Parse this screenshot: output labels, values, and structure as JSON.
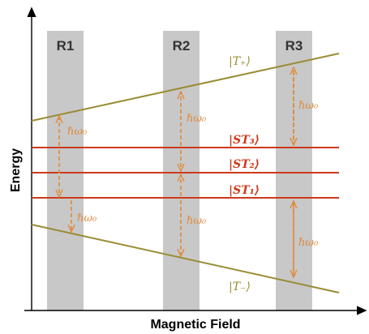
{
  "axes": {
    "xlabel": "Magnetic Field",
    "ylabel": "Energy"
  },
  "regions": [
    {
      "label": "R1"
    },
    {
      "label": "R2"
    },
    {
      "label": "R3"
    }
  ],
  "levels": {
    "t_plus": "|T₊⟩",
    "st3": "|ST₃⟩",
    "st2": "|ST₂⟩",
    "st1": "|ST₁⟩",
    "t_minus": "|T₋⟩"
  },
  "transition_label": "ℏω₀",
  "colors": {
    "triplet_line": "#9a8b33",
    "singlet_triplet_line": "#cc3a1a",
    "arrow": "#e08a3a",
    "region_fill": "#c8c8c8",
    "axis": "#000000"
  }
}
